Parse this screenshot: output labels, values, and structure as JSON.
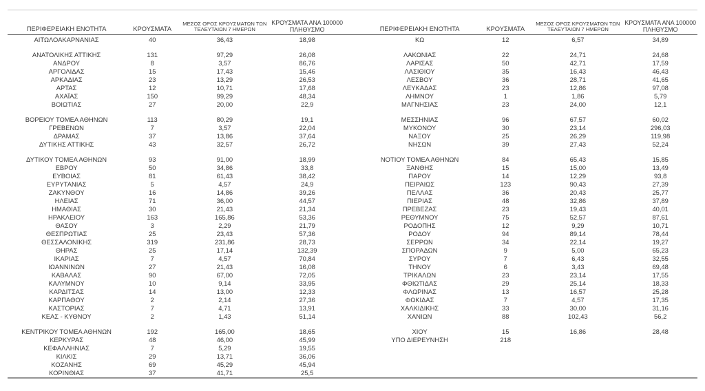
{
  "headers": {
    "region": "ΠΕΡΙΦΕΡΕΙΑΚΗ ΕΝΟΤΗΤΑ",
    "cases": "ΚΡΟΥΣΜΑΤΑ",
    "avg7": "ΜΕΣΟΣ ΟΡΟΣ ΚΡΟΥΣΜΑΤΩΝ ΤΩΝ ΤΕΛΕΥΤΑΙΩΝ 7 ΗΜΕΡΩΝ",
    "per100k": "ΚΡΟΥΣΜΑΤΑ ΑΝΑ 100000 ΠΛΗΘΥΣΜΟ"
  },
  "colors": {
    "text": "#3a3a3a",
    "rule_top": "#c4c4c4",
    "rule_header": "#4d4d4d",
    "rule_bottom": "#949494"
  },
  "left_table": {
    "groups": [
      [
        [
          "ΑΙΤΩΛΟΑΚΑΡΝΑΝΙΑΣ",
          "40",
          "36,43",
          "18,98"
        ]
      ],
      [
        [
          "ΑΝΑΤΟΛΙΚΗΣ ΑΤΤΙΚΗΣ",
          "131",
          "97,29",
          "26,08"
        ],
        [
          "ΑΝΔΡΟΥ",
          "8",
          "3,57",
          "86,76"
        ],
        [
          "ΑΡΓΟΛΙΔΑΣ",
          "15",
          "17,43",
          "15,46"
        ],
        [
          "ΑΡΚΑΔΙΑΣ",
          "23",
          "13,29",
          "26,53"
        ],
        [
          "ΑΡΤΑΣ",
          "12",
          "10,71",
          "17,68"
        ],
        [
          "ΑΧΑΪΑΣ",
          "150",
          "99,29",
          "48,34"
        ],
        [
          "ΒΟΙΩΤΙΑΣ",
          "27",
          "20,00",
          "22,9"
        ]
      ],
      [
        [
          "ΒΟΡΕΙΟΥ ΤΟΜΕΑ ΑΘΗΝΩΝ",
          "113",
          "80,29",
          "19,1"
        ],
        [
          "ΓΡΕΒΕΝΩΝ",
          "7",
          "3,57",
          "22,04"
        ],
        [
          "ΔΡΑΜΑΣ",
          "37",
          "13,86",
          "37,64"
        ],
        [
          "ΔΥΤΙΚΗΣ ΑΤΤΙΚΗΣ",
          "43",
          "32,57",
          "26,72"
        ]
      ],
      [
        [
          "ΔΥΤΙΚΟΥ ΤΟΜΕΑ ΑΘΗΝΩΝ",
          "93",
          "91,00",
          "18,99"
        ],
        [
          "ΕΒΡΟΥ",
          "50",
          "34,86",
          "33,8"
        ],
        [
          "ΕΥΒΟΙΑΣ",
          "81",
          "61,43",
          "38,42"
        ],
        [
          "ΕΥΡΥΤΑΝΙΑΣ",
          "5",
          "4,57",
          "24,9"
        ],
        [
          "ΖΑΚΥΝΘΟΥ",
          "16",
          "14,86",
          "39,26"
        ],
        [
          "ΗΛΕΙΑΣ",
          "71",
          "36,00",
          "44,57"
        ],
        [
          "ΗΜΑΘΙΑΣ",
          "30",
          "21,43",
          "21,34"
        ],
        [
          "ΗΡΑΚΛΕΙΟΥ",
          "163",
          "165,86",
          "53,36"
        ],
        [
          "ΘΑΣΟΥ",
          "3",
          "2,29",
          "21,79"
        ],
        [
          "ΘΕΣΠΡΩΤΙΑΣ",
          "25",
          "23,43",
          "57,36"
        ],
        [
          "ΘΕΣΣΑΛΟΝΙΚΗΣ",
          "319",
          "231,86",
          "28,73"
        ],
        [
          "ΘΗΡΑΣ",
          "25",
          "17,14",
          "132,39"
        ],
        [
          "ΙΚΑΡΙΑΣ",
          "7",
          "4,57",
          "70,84"
        ],
        [
          "ΙΩΑΝΝΙΝΩΝ",
          "27",
          "21,43",
          "16,08"
        ],
        [
          "ΚΑΒΑΛΑΣ",
          "90",
          "67,00",
          "72,05"
        ],
        [
          "ΚΑΛΥΜΝΟΥ",
          "10",
          "9,14",
          "33,95"
        ],
        [
          "ΚΑΡΔΙΤΣΑΣ",
          "14",
          "13,00",
          "12,33"
        ],
        [
          "ΚΑΡΠΑΘΟΥ",
          "2",
          "2,14",
          "27,36"
        ],
        [
          "ΚΑΣΤΟΡΙΑΣ",
          "7",
          "4,71",
          "13,91"
        ],
        [
          "ΚΕΑΣ - ΚΥΘΝΟΥ",
          "2",
          "1,43",
          "51,14"
        ]
      ],
      [
        [
          "ΚΕΝΤΡΙΚΟΥ ΤΟΜΕΑ ΑΘΗΝΩΝ",
          "192",
          "165,00",
          "18,65"
        ],
        [
          "ΚΕΡΚΥΡΑΣ",
          "48",
          "46,00",
          "45,99"
        ],
        [
          "ΚΕΦΑΛΛΗΝΙΑΣ",
          "7",
          "5,29",
          "19,55"
        ],
        [
          "ΚΙΛΚΙΣ",
          "29",
          "13,71",
          "36,06"
        ],
        [
          "ΚΟΖΑΝΗΣ",
          "69",
          "45,29",
          "45,94"
        ],
        [
          "ΚΟΡΙΝΘΙΑΣ",
          "37",
          "41,71",
          "25,5"
        ]
      ]
    ]
  },
  "right_table": {
    "groups": [
      [
        [
          "ΚΩ",
          "12",
          "6,57",
          "34,89"
        ]
      ],
      [
        [
          "ΛΑΚΩΝΙΑΣ",
          "22",
          "24,71",
          "24,68"
        ],
        [
          "ΛΑΡΙΣΑΣ",
          "50",
          "42,71",
          "17,59"
        ],
        [
          "ΛΑΣΙΘΙΟΥ",
          "35",
          "16,43",
          "46,43"
        ],
        [
          "ΛΕΣΒΟΥ",
          "36",
          "28,71",
          "41,65"
        ],
        [
          "ΛΕΥΚΑΔΑΣ",
          "23",
          "12,86",
          "97,08"
        ],
        [
          "ΛΗΜΝΟΥ",
          "1",
          "1,86",
          "5,79"
        ],
        [
          "ΜΑΓΝΗΣΙΑΣ",
          "23",
          "24,00",
          "12,1"
        ]
      ],
      [
        [
          "ΜΕΣΣΗΝΙΑΣ",
          "96",
          "67,57",
          "60,02"
        ],
        [
          "ΜΥΚΟΝΟΥ",
          "30",
          "23,14",
          "296,03"
        ],
        [
          "ΝΑΞΟΥ",
          "25",
          "26,29",
          "119,98"
        ],
        [
          "ΝΗΣΩΝ",
          "39",
          "27,43",
          "52,24"
        ]
      ],
      [
        [
          "ΝΟΤΙΟΥ ΤΟΜΕΑ ΑΘΗΝΩΝ",
          "84",
          "65,43",
          "15,85"
        ],
        [
          "ΞΑΝΘΗΣ",
          "15",
          "15,00",
          "13,49"
        ],
        [
          "ΠΑΡΟΥ",
          "14",
          "12,29",
          "93,8"
        ],
        [
          "ΠΕΙΡΑΙΩΣ",
          "123",
          "90,43",
          "27,39"
        ],
        [
          "ΠΕΛΛΑΣ",
          "36",
          "20,43",
          "25,77"
        ],
        [
          "ΠΙΕΡΙΑΣ",
          "48",
          "32,86",
          "37,89"
        ],
        [
          "ΠΡΕΒΕΖΑΣ",
          "23",
          "19,43",
          "40,01"
        ],
        [
          "ΡΕΘΥΜΝΟΥ",
          "75",
          "52,57",
          "87,61"
        ],
        [
          "ΡΟΔΟΠΗΣ",
          "12",
          "9,29",
          "10,71"
        ],
        [
          "ΡΟΔΟΥ",
          "94",
          "89,14",
          "78,44"
        ],
        [
          "ΣΕΡΡΩΝ",
          "34",
          "22,14",
          "19,27"
        ],
        [
          "ΣΠΟΡΑΔΩΝ",
          "9",
          "5,00",
          "65,23"
        ],
        [
          "ΣΥΡΟΥ",
          "7",
          "6,43",
          "32,55"
        ],
        [
          "ΤΗΝΟΥ",
          "6",
          "3,43",
          "69,48"
        ],
        [
          "ΤΡΙΚΑΛΩΝ",
          "23",
          "23,14",
          "17,55"
        ],
        [
          "ΦΘΙΩΤΙΔΑΣ",
          "29",
          "25,14",
          "18,33"
        ],
        [
          "ΦΛΩΡΙΝΑΣ",
          "13",
          "16,57",
          "25,28"
        ],
        [
          "ΦΩΚΙΔΑΣ",
          "7",
          "4,57",
          "17,35"
        ],
        [
          "ΧΑΛΚΙΔΙΚΗΣ",
          "33",
          "30,00",
          "31,16"
        ],
        [
          "ΧΑΝΙΩΝ",
          "88",
          "102,43",
          "56,2"
        ]
      ],
      [
        [
          "ΧΙΟΥ",
          "15",
          "16,86",
          "28,48"
        ],
        [
          "ΥΠΟ ΔΙΕΡΕΥΝΗΣΗ",
          "218",
          "",
          ""
        ]
      ]
    ]
  }
}
